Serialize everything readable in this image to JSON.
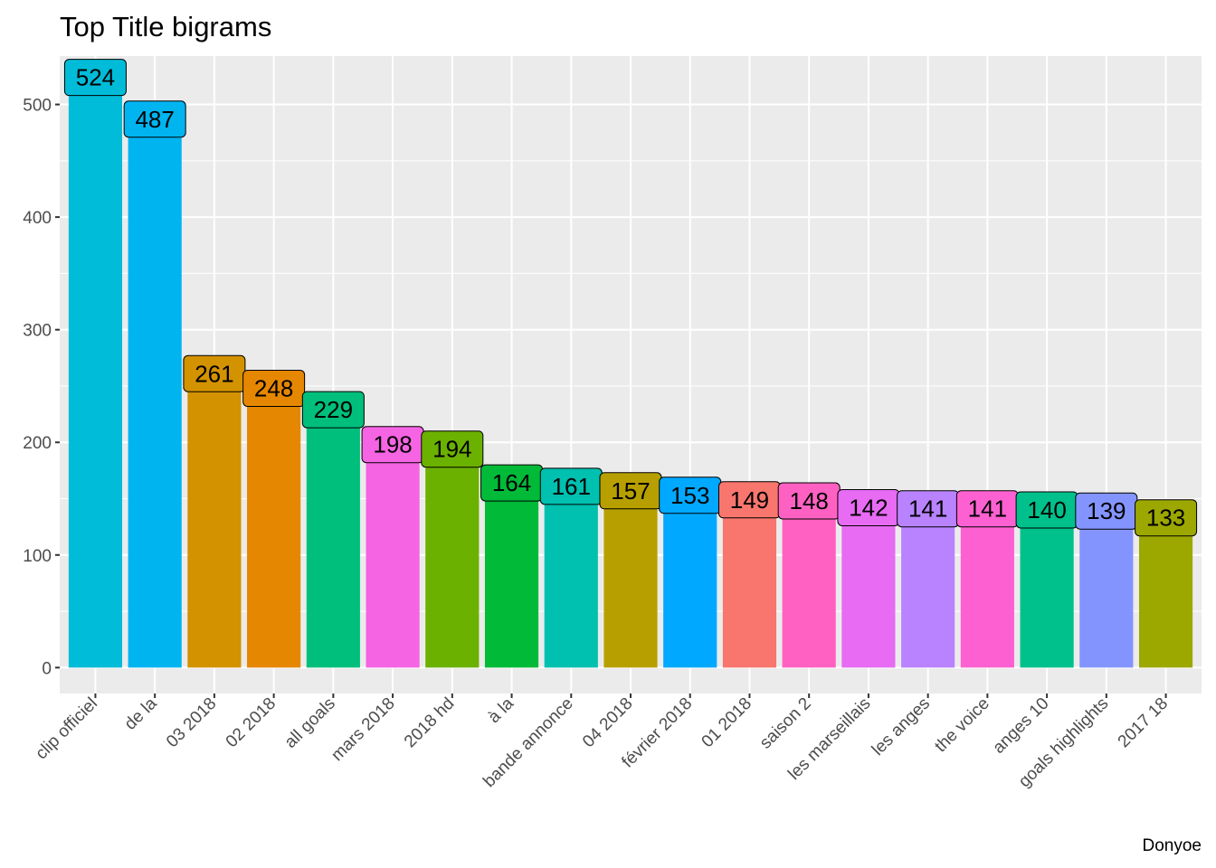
{
  "chart_data": {
    "type": "bar",
    "title": "Top Title bigrams",
    "caption": "Donyoe",
    "xlabel": "",
    "ylabel": "",
    "ylim": [
      -23,
      543
    ],
    "yticks": [
      0,
      100,
      200,
      300,
      400,
      500
    ],
    "grid": true,
    "legend": "none",
    "categories": [
      "clip officiel",
      "de la",
      "03 2018",
      "02 2018",
      "all goals",
      "mars 2018",
      "2018 hd",
      "à la",
      "bande annonce",
      "04 2018",
      "février 2018",
      "01 2018",
      "saison 2",
      "les marseillais",
      "les anges",
      "the voice",
      "anges 10",
      "goals highlights",
      "2017 18"
    ],
    "values": [
      524,
      487,
      261,
      248,
      229,
      198,
      194,
      164,
      161,
      157,
      153,
      149,
      148,
      142,
      141,
      141,
      140,
      139,
      133
    ],
    "colors": [
      "#00BCD8",
      "#00B4F0",
      "#D39200",
      "#E58700",
      "#00BF7D",
      "#F564E3",
      "#6BB100",
      "#00BA38",
      "#00C0AF",
      "#B79F00",
      "#00A9FF",
      "#F8766D",
      "#FF61C3",
      "#E76BF3",
      "#B983FF",
      "#FD61D1",
      "#00C08B",
      "#8494FF",
      "#9CA700"
    ],
    "panel_background": "#EBEBEB",
    "gridline_color": "#FFFFFF"
  }
}
